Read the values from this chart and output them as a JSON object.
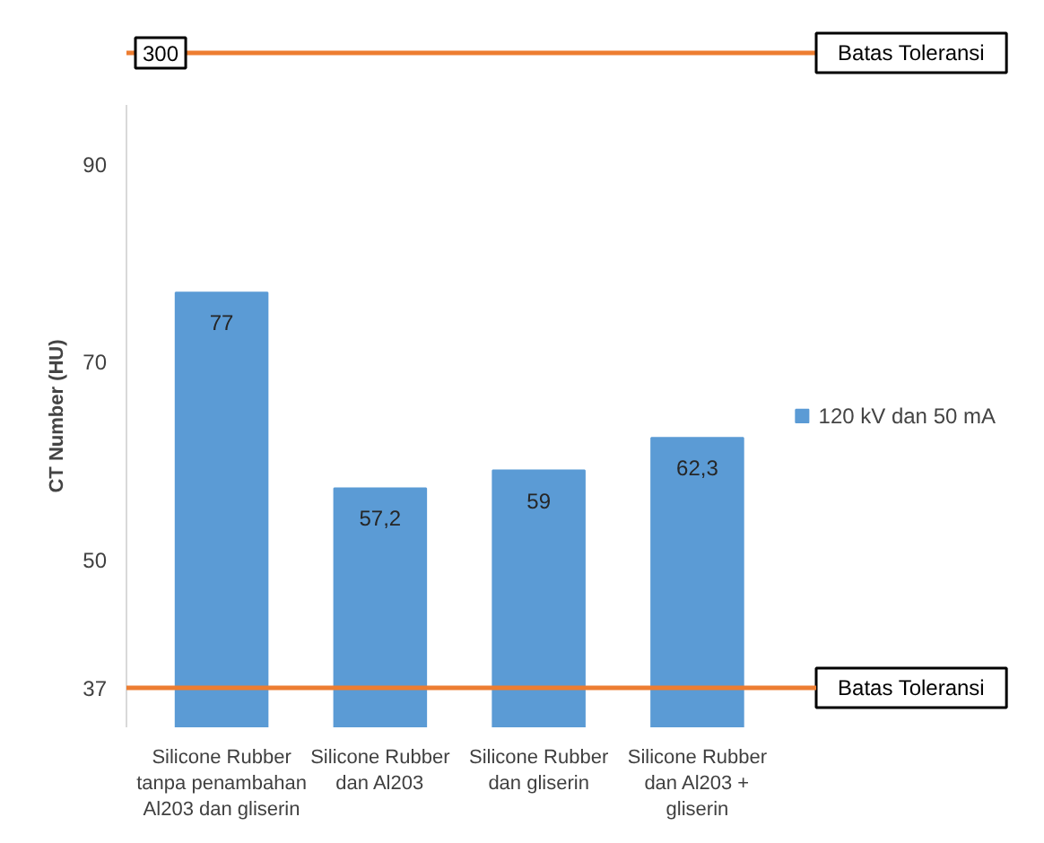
{
  "chart_data": [
    {
      "type": "other",
      "annotations": [
        "300",
        "Batas Toleransi"
      ]
    },
    {
      "type": "bar",
      "ylabel": "CT Number (HU)",
      "categories": [
        "Silicone Rubber tanpa penambahan Al203 dan gliserin",
        "Silicone Rubber dan Al203",
        "Silicone Rubber dan gliserin",
        "Silicone Rubber dan Al203 + gliserin"
      ],
      "series": [
        {
          "name": "120 kV dan 50 mA",
          "color": "#5b9bd5",
          "values": [
            77,
            57.2,
            59,
            62.3
          ]
        }
      ],
      "value_labels": [
        "77",
        "57,2",
        "59",
        "62,3"
      ],
      "ylim": [
        33,
        96
      ],
      "yticks": [
        37,
        50,
        70,
        90
      ],
      "ref_lines": [
        {
          "axis": "y",
          "value": 37,
          "label": "Batas Toleransi",
          "color": "#ed7d31"
        }
      ],
      "grid": false,
      "legend": "right"
    }
  ]
}
